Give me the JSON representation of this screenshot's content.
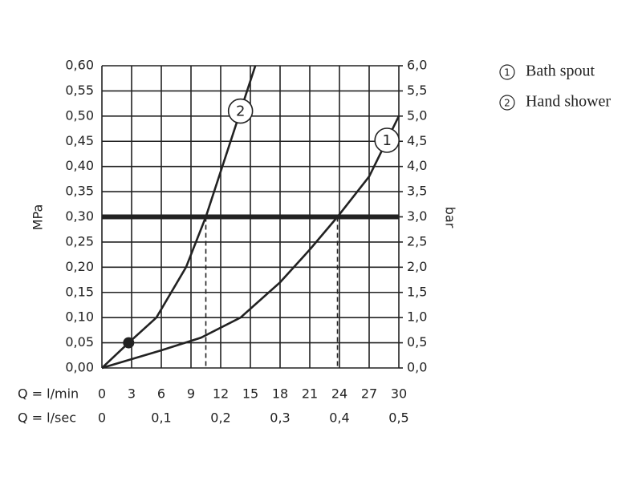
{
  "chart_data": {
    "type": "line",
    "xlabel": "Q = l/min",
    "x2label": "Q = l/sec",
    "ylabel": "MPa",
    "y2label": "bar",
    "xlim": [
      0,
      30
    ],
    "xticks": [
      0,
      3,
      6,
      9,
      12,
      15,
      18,
      21,
      24,
      27,
      30
    ],
    "x2lim": [
      0,
      0.5
    ],
    "x2ticks": [
      0,
      {
        "value": 0.1,
        "label": "0,1"
      },
      {
        "value": 0.2,
        "label": "0,2"
      },
      {
        "value": 0.3,
        "label": "0,3"
      },
      {
        "value": 0.4,
        "label": "0,4"
      },
      {
        "value": 0.5,
        "label": "0,5"
      }
    ],
    "ylim": [
      0,
      0.6
    ],
    "yticks": [
      {
        "value": 0,
        "label": "0,00"
      },
      {
        "value": 0.05,
        "label": "0,05"
      },
      {
        "value": 0.1,
        "label": "0,10"
      },
      {
        "value": 0.15,
        "label": "0,15"
      },
      {
        "value": 0.2,
        "label": "0,20"
      },
      {
        "value": 0.25,
        "label": "0,25"
      },
      {
        "value": 0.3,
        "label": "0,30"
      },
      {
        "value": 0.35,
        "label": "0,35"
      },
      {
        "value": 0.4,
        "label": "0,40"
      },
      {
        "value": 0.45,
        "label": "0,45"
      },
      {
        "value": 0.5,
        "label": "0,50"
      },
      {
        "value": 0.55,
        "label": "0,55"
      },
      {
        "value": 0.6,
        "label": "0,60"
      }
    ],
    "y2lim": [
      0,
      6
    ],
    "y2ticks": [
      {
        "value": 0,
        "label": "0,0"
      },
      {
        "value": 0.5,
        "label": "0,5"
      },
      {
        "value": 1,
        "label": "1,0"
      },
      {
        "value": 1.5,
        "label": "1,5"
      },
      {
        "value": 2,
        "label": "2,0"
      },
      {
        "value": 2.5,
        "label": "2,5"
      },
      {
        "value": 3,
        "label": "3,0"
      },
      {
        "value": 3.5,
        "label": "3,5"
      },
      {
        "value": 4,
        "label": "4,0"
      },
      {
        "value": 4.5,
        "label": "4,5"
      },
      {
        "value": 5,
        "label": "5,0"
      },
      {
        "value": 5.5,
        "label": "5,5"
      },
      {
        "value": 6,
        "label": "6,0"
      }
    ],
    "grid": true,
    "threshold": 0.3,
    "drop_lines": [
      {
        "x": 10.5,
        "y": 0.3
      },
      {
        "x": 23.8,
        "y": 0.3
      }
    ],
    "points": [
      {
        "x": 2.7,
        "y": 0.05
      }
    ],
    "legend": "top-right",
    "series": [
      {
        "name": "Bath spout",
        "label": "1",
        "color": "#222222",
        "x": [
          0,
          6,
          10,
          14,
          18,
          21,
          23.8,
          27,
          30
        ],
        "values": [
          0,
          0.035,
          0.06,
          0.1,
          0.17,
          0.235,
          0.3,
          0.38,
          0.5
        ]
      },
      {
        "name": "Hand shower",
        "label": "2",
        "color": "#222222",
        "x": [
          0,
          2.7,
          5.5,
          8.5,
          10.5,
          12.5,
          15.5
        ],
        "values": [
          0,
          0.05,
          0.1,
          0.2,
          0.3,
          0.42,
          0.6
        ]
      }
    ]
  }
}
